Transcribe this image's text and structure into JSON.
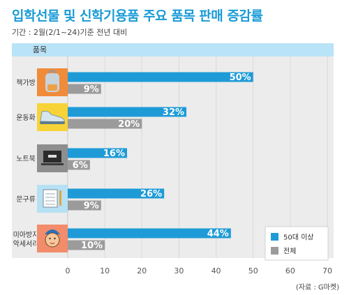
{
  "header": {
    "title": "입학선물 및 신학기용품 주요 품목 판매 증감률",
    "subtitle": "기간 : 2월(2/1~24)기준 전년 대비"
  },
  "table_header": "품목",
  "source": "(자료 : G마켓)",
  "colors": {
    "title": "#1a9bd6",
    "series_50s": "#1e9bd7",
    "series_all": "#9b9b9b",
    "panel": "#ececec",
    "header_bar": "#b9e3f6"
  },
  "chart_data": {
    "type": "bar",
    "orientation": "horizontal",
    "categories": [
      "책가방",
      "운동화",
      "노트북",
      "문구류",
      "미아방지 악세서리"
    ],
    "category_icons": [
      "backpack-icon",
      "sneaker-icon",
      "laptop-icon",
      "notebook-icon",
      "child-icon"
    ],
    "series": [
      {
        "name": "50대 이상",
        "values": [
          50,
          32,
          16,
          26,
          44
        ],
        "labels": [
          "50%",
          "32%",
          "16%",
          "26%",
          "44%"
        ]
      },
      {
        "name": "전체",
        "values": [
          9,
          20,
          6,
          9,
          10
        ],
        "labels": [
          "9%",
          "20%",
          "6%",
          "9%",
          "10%"
        ]
      }
    ],
    "xlim": [
      0,
      70
    ],
    "xticks": [
      "0",
      "10",
      "20",
      "30",
      "40",
      "50",
      "60",
      "70"
    ],
    "legend_position": "bottom-right",
    "grid": true
  }
}
